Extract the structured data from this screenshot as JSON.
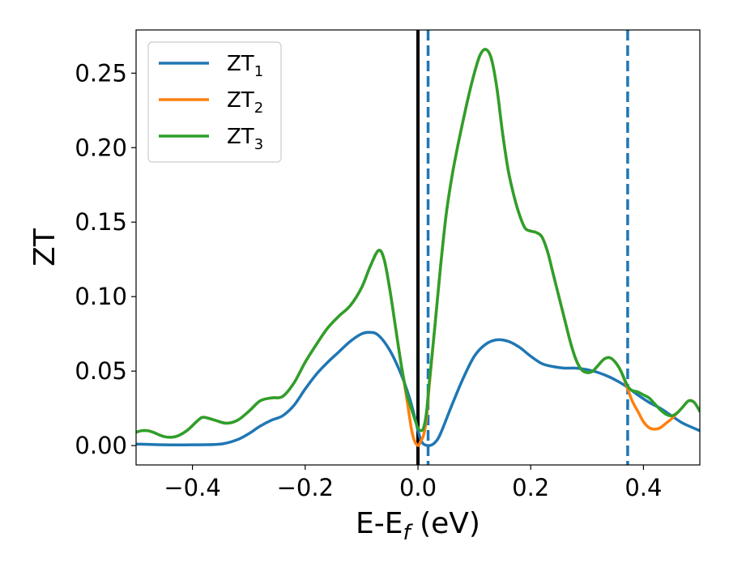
{
  "chart_data": {
    "type": "line",
    "title": "",
    "xlabel": "E-E",
    "xlabel_sub": "f",
    "xlabel_unit": " (eV)",
    "ylabel": "ZT",
    "xlim": [
      -0.5,
      0.5
    ],
    "ylim": [
      -0.013,
      0.279
    ],
    "xticks": [
      -0.4,
      -0.2,
      0.0,
      0.2,
      0.4
    ],
    "xtick_labels": [
      "−0.4",
      "−0.2",
      "0.0",
      "0.2",
      "0.4"
    ],
    "yticks": [
      0.0,
      0.05,
      0.1,
      0.15,
      0.2,
      0.25
    ],
    "ytick_labels": [
      "0.00",
      "0.05",
      "0.10",
      "0.15",
      "0.20",
      "0.25"
    ],
    "grid": false,
    "legend_position": "top-left",
    "vlines": [
      {
        "x": 0.0,
        "style": "solid",
        "color": "#000000"
      },
      {
        "x": 0.018,
        "style": "dashed",
        "color": "#1f77b4"
      },
      {
        "x": 0.372,
        "style": "dashed",
        "color": "#1f77b4"
      }
    ],
    "series": [
      {
        "name": "ZT",
        "name_sub": "1",
        "color": "#1f77b4",
        "points": [
          [
            -0.5,
            0.001
          ],
          [
            -0.45,
            0.0005
          ],
          [
            -0.4,
            0.0005
          ],
          [
            -0.35,
            0.001
          ],
          [
            -0.32,
            0.004
          ],
          [
            -0.3,
            0.008
          ],
          [
            -0.28,
            0.013
          ],
          [
            -0.26,
            0.017
          ],
          [
            -0.24,
            0.02
          ],
          [
            -0.22,
            0.027
          ],
          [
            -0.2,
            0.038
          ],
          [
            -0.18,
            0.048
          ],
          [
            -0.16,
            0.056
          ],
          [
            -0.14,
            0.063
          ],
          [
            -0.12,
            0.07
          ],
          [
            -0.1,
            0.075
          ],
          [
            -0.085,
            0.076
          ],
          [
            -0.07,
            0.074
          ],
          [
            -0.05,
            0.064
          ],
          [
            -0.03,
            0.048
          ],
          [
            -0.015,
            0.032
          ],
          [
            -0.005,
            0.018
          ],
          [
            0.0,
            0.01
          ],
          [
            0.005,
            0.004
          ],
          [
            0.01,
            0.001
          ],
          [
            0.02,
            0.0
          ],
          [
            0.03,
            0.002
          ],
          [
            0.04,
            0.008
          ],
          [
            0.06,
            0.027
          ],
          [
            0.08,
            0.045
          ],
          [
            0.1,
            0.06
          ],
          [
            0.12,
            0.068
          ],
          [
            0.14,
            0.071
          ],
          [
            0.16,
            0.07
          ],
          [
            0.18,
            0.066
          ],
          [
            0.2,
            0.06
          ],
          [
            0.22,
            0.055
          ],
          [
            0.24,
            0.053
          ],
          [
            0.26,
            0.052
          ],
          [
            0.28,
            0.052
          ],
          [
            0.3,
            0.051
          ],
          [
            0.32,
            0.049
          ],
          [
            0.34,
            0.046
          ],
          [
            0.36,
            0.042
          ],
          [
            0.372,
            0.039
          ],
          [
            0.39,
            0.034
          ],
          [
            0.41,
            0.029
          ],
          [
            0.43,
            0.025
          ],
          [
            0.45,
            0.02
          ],
          [
            0.47,
            0.015
          ],
          [
            0.5,
            0.01
          ]
        ]
      },
      {
        "name": "ZT",
        "name_sub": "2",
        "color": "#ff7f0e",
        "points": [
          [
            -0.5,
            0.009
          ],
          [
            -0.49,
            0.01
          ],
          [
            -0.48,
            0.01
          ],
          [
            -0.47,
            0.009
          ],
          [
            -0.45,
            0.006
          ],
          [
            -0.43,
            0.006
          ],
          [
            -0.41,
            0.01
          ],
          [
            -0.39,
            0.017
          ],
          [
            -0.38,
            0.019
          ],
          [
            -0.36,
            0.017
          ],
          [
            -0.34,
            0.015
          ],
          [
            -0.32,
            0.017
          ],
          [
            -0.3,
            0.023
          ],
          [
            -0.28,
            0.03
          ],
          [
            -0.26,
            0.032
          ],
          [
            -0.24,
            0.033
          ],
          [
            -0.22,
            0.042
          ],
          [
            -0.2,
            0.056
          ],
          [
            -0.18,
            0.068
          ],
          [
            -0.16,
            0.079
          ],
          [
            -0.14,
            0.087
          ],
          [
            -0.12,
            0.094
          ],
          [
            -0.1,
            0.106
          ],
          [
            -0.085,
            0.12
          ],
          [
            -0.07,
            0.131
          ],
          [
            -0.06,
            0.125
          ],
          [
            -0.05,
            0.105
          ],
          [
            -0.04,
            0.08
          ],
          [
            -0.03,
            0.055
          ],
          [
            -0.02,
            0.032
          ],
          [
            -0.012,
            0.012
          ],
          [
            -0.007,
            0.004
          ],
          [
            0.0,
            0.0
          ],
          [
            0.005,
            0.003
          ],
          [
            0.01,
            0.007
          ],
          [
            0.015,
            0.018
          ],
          [
            0.02,
            0.04
          ],
          [
            0.03,
            0.08
          ],
          [
            0.04,
            0.12
          ],
          [
            0.05,
            0.155
          ],
          [
            0.06,
            0.18
          ],
          [
            0.07,
            0.2
          ],
          [
            0.08,
            0.218
          ],
          [
            0.09,
            0.235
          ],
          [
            0.1,
            0.25
          ],
          [
            0.11,
            0.262
          ],
          [
            0.12,
            0.266
          ],
          [
            0.13,
            0.26
          ],
          [
            0.14,
            0.24
          ],
          [
            0.15,
            0.21
          ],
          [
            0.16,
            0.185
          ],
          [
            0.17,
            0.168
          ],
          [
            0.18,
            0.155
          ],
          [
            0.19,
            0.146
          ],
          [
            0.2,
            0.144
          ],
          [
            0.21,
            0.143
          ],
          [
            0.22,
            0.14
          ],
          [
            0.23,
            0.13
          ],
          [
            0.24,
            0.115
          ],
          [
            0.25,
            0.1
          ],
          [
            0.26,
            0.085
          ],
          [
            0.27,
            0.07
          ],
          [
            0.28,
            0.058
          ],
          [
            0.29,
            0.051
          ],
          [
            0.3,
            0.049
          ],
          [
            0.31,
            0.05
          ],
          [
            0.32,
            0.054
          ],
          [
            0.33,
            0.058
          ],
          [
            0.34,
            0.059
          ],
          [
            0.35,
            0.056
          ],
          [
            0.36,
            0.05
          ],
          [
            0.372,
            0.038
          ],
          [
            0.38,
            0.03
          ],
          [
            0.39,
            0.023
          ],
          [
            0.4,
            0.016
          ],
          [
            0.41,
            0.012
          ],
          [
            0.42,
            0.011
          ],
          [
            0.43,
            0.012
          ],
          [
            0.44,
            0.015
          ],
          [
            0.45,
            0.018
          ],
          [
            0.46,
            0.022
          ],
          [
            0.47,
            0.026
          ],
          [
            0.48,
            0.03
          ],
          [
            0.49,
            0.029
          ],
          [
            0.5,
            0.023
          ]
        ]
      },
      {
        "name": "ZT",
        "name_sub": "3",
        "color": "#2ca02c",
        "points": [
          [
            -0.5,
            0.009
          ],
          [
            -0.49,
            0.01
          ],
          [
            -0.48,
            0.01
          ],
          [
            -0.47,
            0.009
          ],
          [
            -0.45,
            0.006
          ],
          [
            -0.43,
            0.006
          ],
          [
            -0.41,
            0.01
          ],
          [
            -0.39,
            0.017
          ],
          [
            -0.38,
            0.019
          ],
          [
            -0.36,
            0.017
          ],
          [
            -0.34,
            0.015
          ],
          [
            -0.32,
            0.017
          ],
          [
            -0.3,
            0.023
          ],
          [
            -0.28,
            0.03
          ],
          [
            -0.26,
            0.032
          ],
          [
            -0.24,
            0.033
          ],
          [
            -0.22,
            0.042
          ],
          [
            -0.2,
            0.056
          ],
          [
            -0.18,
            0.068
          ],
          [
            -0.16,
            0.079
          ],
          [
            -0.14,
            0.087
          ],
          [
            -0.12,
            0.094
          ],
          [
            -0.1,
            0.106
          ],
          [
            -0.085,
            0.12
          ],
          [
            -0.07,
            0.131
          ],
          [
            -0.06,
            0.125
          ],
          [
            -0.05,
            0.105
          ],
          [
            -0.04,
            0.08
          ],
          [
            -0.03,
            0.055
          ],
          [
            -0.02,
            0.035
          ],
          [
            -0.012,
            0.025
          ],
          [
            -0.005,
            0.017
          ],
          [
            0.0,
            0.012
          ],
          [
            0.005,
            0.01
          ],
          [
            0.01,
            0.012
          ],
          [
            0.015,
            0.022
          ],
          [
            0.02,
            0.042
          ],
          [
            0.03,
            0.08
          ],
          [
            0.04,
            0.12
          ],
          [
            0.05,
            0.155
          ],
          [
            0.06,
            0.18
          ],
          [
            0.07,
            0.2
          ],
          [
            0.08,
            0.218
          ],
          [
            0.09,
            0.235
          ],
          [
            0.1,
            0.25
          ],
          [
            0.11,
            0.262
          ],
          [
            0.12,
            0.266
          ],
          [
            0.13,
            0.26
          ],
          [
            0.14,
            0.24
          ],
          [
            0.15,
            0.21
          ],
          [
            0.16,
            0.185
          ],
          [
            0.17,
            0.168
          ],
          [
            0.18,
            0.155
          ],
          [
            0.19,
            0.146
          ],
          [
            0.2,
            0.144
          ],
          [
            0.21,
            0.143
          ],
          [
            0.22,
            0.14
          ],
          [
            0.23,
            0.13
          ],
          [
            0.24,
            0.115
          ],
          [
            0.25,
            0.1
          ],
          [
            0.26,
            0.085
          ],
          [
            0.27,
            0.07
          ],
          [
            0.28,
            0.058
          ],
          [
            0.29,
            0.051
          ],
          [
            0.3,
            0.049
          ],
          [
            0.31,
            0.05
          ],
          [
            0.32,
            0.054
          ],
          [
            0.33,
            0.058
          ],
          [
            0.34,
            0.059
          ],
          [
            0.35,
            0.056
          ],
          [
            0.36,
            0.05
          ],
          [
            0.372,
            0.04
          ],
          [
            0.38,
            0.037
          ],
          [
            0.39,
            0.036
          ],
          [
            0.4,
            0.034
          ],
          [
            0.41,
            0.032
          ],
          [
            0.42,
            0.028
          ],
          [
            0.43,
            0.024
          ],
          [
            0.44,
            0.021
          ],
          [
            0.45,
            0.02
          ],
          [
            0.46,
            0.022
          ],
          [
            0.47,
            0.026
          ],
          [
            0.48,
            0.03
          ],
          [
            0.49,
            0.029
          ],
          [
            0.5,
            0.023
          ]
        ]
      }
    ]
  }
}
